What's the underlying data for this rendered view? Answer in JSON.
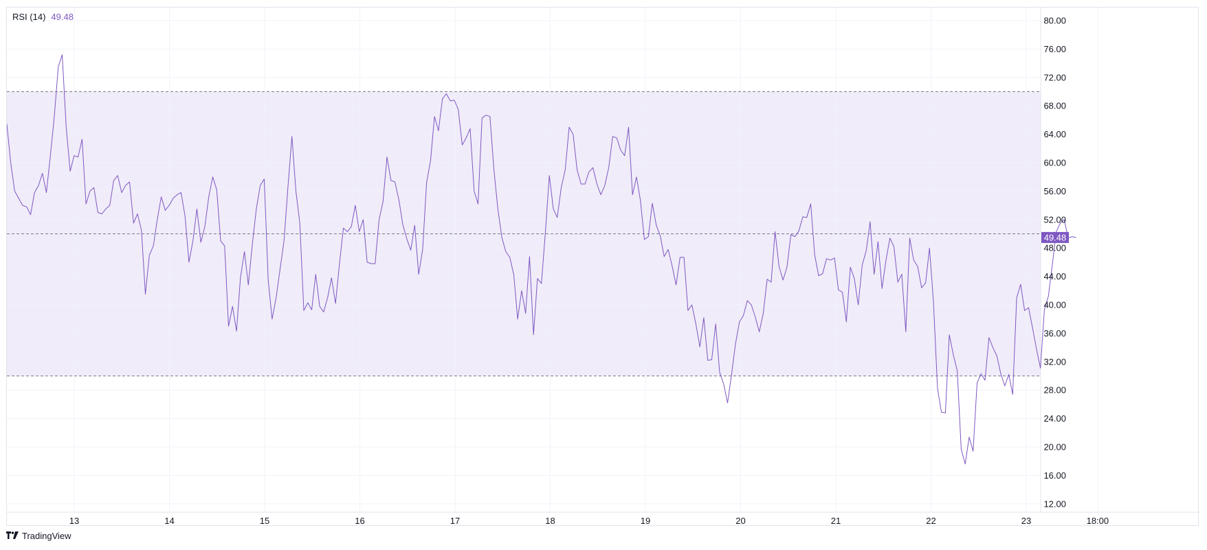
{
  "legend": {
    "name": "RSI (14)",
    "value": "49.48"
  },
  "brand": {
    "name": "TradingView",
    "icon": "tradingview-logo-icon"
  },
  "colors": {
    "line": "#7e57c2",
    "band": "#f0ecf9",
    "badge": "#7e57c2"
  },
  "chart_data": {
    "type": "line",
    "title": "RSI (14)",
    "series": [
      {
        "name": "RSI (14)",
        "x_start": 0,
        "x_step": 0.0416,
        "values": [
          62.5,
          65.5,
          60,
          56,
          55,
          54,
          53.8,
          52.7,
          55.8,
          56.8,
          58.5,
          55.8,
          61,
          66.5,
          73.5,
          75.2,
          65,
          58.8,
          61,
          60.8,
          63.3,
          54.2,
          56,
          56.5,
          53,
          52.8,
          53.5,
          54,
          57.5,
          58.2,
          55.8,
          56.8,
          57.3,
          51.5,
          52.8,
          50.5,
          41.5,
          47,
          48.3,
          52,
          55.2,
          53.3,
          54,
          55,
          55.5,
          55.8,
          52.5,
          46,
          49,
          53.5,
          48.8,
          51,
          55.2,
          58,
          56.2,
          49,
          48.3,
          37,
          39.8,
          36.3,
          43.8,
          47.5,
          42.8,
          48.5,
          53.5,
          56.8,
          57.7,
          43.5,
          38,
          41,
          45,
          49,
          56.7,
          63.7,
          56,
          51.5,
          39.2,
          40.3,
          39.3,
          44.3,
          39.8,
          39,
          41,
          43.8,
          40.2,
          45.8,
          50.8,
          50.3,
          51,
          54,
          50.3,
          52,
          46,
          45.8,
          45.8,
          52,
          54.5,
          60.8,
          57.5,
          57.3,
          54.8,
          51.3,
          49.3,
          47.7,
          51.2,
          44.3,
          47.8,
          57.2,
          60.3,
          66.5,
          64.5,
          69,
          69.7,
          68.7,
          68.8,
          67.5,
          62.5,
          63.5,
          64.8,
          56,
          54.2,
          66.3,
          66.7,
          66.5,
          59,
          53.5,
          49.5,
          47.5,
          46.7,
          44.3,
          38,
          42,
          38.8,
          46.8,
          35.8,
          43.7,
          43,
          50.3,
          58.2,
          53.5,
          52.3,
          56.5,
          59,
          65,
          64,
          59,
          57,
          57,
          58.7,
          59.3,
          57,
          55.5,
          56.8,
          59.3,
          63.7,
          63.5,
          61.8,
          61,
          65,
          55.5,
          58,
          54.7,
          49.2,
          49.6,
          54.3,
          51.2,
          49.7,
          46.8,
          47.8,
          45.5,
          42.8,
          46.7,
          46.7,
          39.2,
          40,
          37.3,
          34.1,
          38.2,
          32.2,
          32.3,
          37.3,
          30.5,
          28.9,
          26.2,
          30.2,
          34.5,
          37.6,
          38.5,
          40.6,
          40,
          38.3,
          36.2,
          38.8,
          43.6,
          43.2,
          50.3,
          45.4,
          43.5,
          45.3,
          49.9,
          49.6,
          50.4,
          52.4,
          52.3,
          54.2,
          47,
          44.1,
          44.4,
          46.5,
          46.3,
          46.6,
          42.1,
          41.8,
          37.6,
          45.3,
          43.7,
          40,
          45.6,
          47.6,
          51.7,
          44.3,
          48.9,
          42.3,
          46.3,
          49.4,
          48.2,
          43.2,
          44.3,
          36.2,
          49.4,
          46.3,
          45.4,
          42.4,
          43.1,
          48,
          40.3,
          28.3,
          24.9,
          24.8,
          35.8,
          33,
          30.7,
          19.7,
          17.6,
          21.4,
          19.4,
          29,
          30.3,
          29.4,
          35.4,
          34,
          32.8,
          30.3,
          28.6,
          30.2,
          27.4,
          41,
          42.9,
          39.2,
          39.6,
          36.8,
          33.8,
          31.1,
          39.3,
          41.2,
          45.6,
          50.3,
          51.5,
          52,
          49.4,
          49.6,
          49.48
        ]
      }
    ],
    "x_ticks": [
      {
        "label": "13",
        "x": 0.75
      },
      {
        "label": "14",
        "x": 1.75
      },
      {
        "label": "15",
        "x": 2.75
      },
      {
        "label": "16",
        "x": 3.75
      },
      {
        "label": "17",
        "x": 4.75
      },
      {
        "label": "18",
        "x": 5.75
      },
      {
        "label": "19",
        "x": 6.75
      },
      {
        "label": "20",
        "x": 7.75
      },
      {
        "label": "21",
        "x": 8.75
      },
      {
        "label": "22",
        "x": 9.75
      },
      {
        "label": "23",
        "x": 10.75
      },
      {
        "label": "18:00",
        "x": 11.5
      }
    ],
    "xlim": [
      0,
      11.7
    ],
    "ylim": [
      12,
      81
    ],
    "y_ticks": [
      "80.00",
      "76.00",
      "72.00",
      "68.00",
      "64.00",
      "60.00",
      "56.00",
      "52.00",
      "48.00",
      "44.00",
      "40.00",
      "36.00",
      "32.00",
      "28.00",
      "24.00",
      "20.00",
      "16.00",
      "12.00"
    ],
    "bands": {
      "upper": 70,
      "middle": 50,
      "lower": 30
    },
    "last_value": "49.48",
    "grid": true
  }
}
